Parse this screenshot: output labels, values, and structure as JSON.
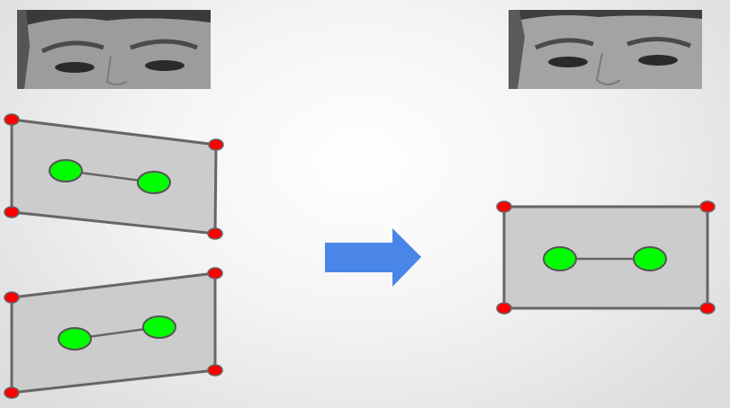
{
  "images": {
    "left_face_crop": {
      "description_icon": "eyes-region-photo"
    },
    "right_face_crop": {
      "description_icon": "eyes-region-photo"
    }
  },
  "colors": {
    "quad_fill": "#cccccc",
    "quad_stroke": "#666666",
    "corner_fill": "#ff0000",
    "eye_fill": "#00ff00",
    "arrow": "#4a86e8"
  },
  "icons": {
    "transform_arrow": "right-arrow-icon"
  }
}
